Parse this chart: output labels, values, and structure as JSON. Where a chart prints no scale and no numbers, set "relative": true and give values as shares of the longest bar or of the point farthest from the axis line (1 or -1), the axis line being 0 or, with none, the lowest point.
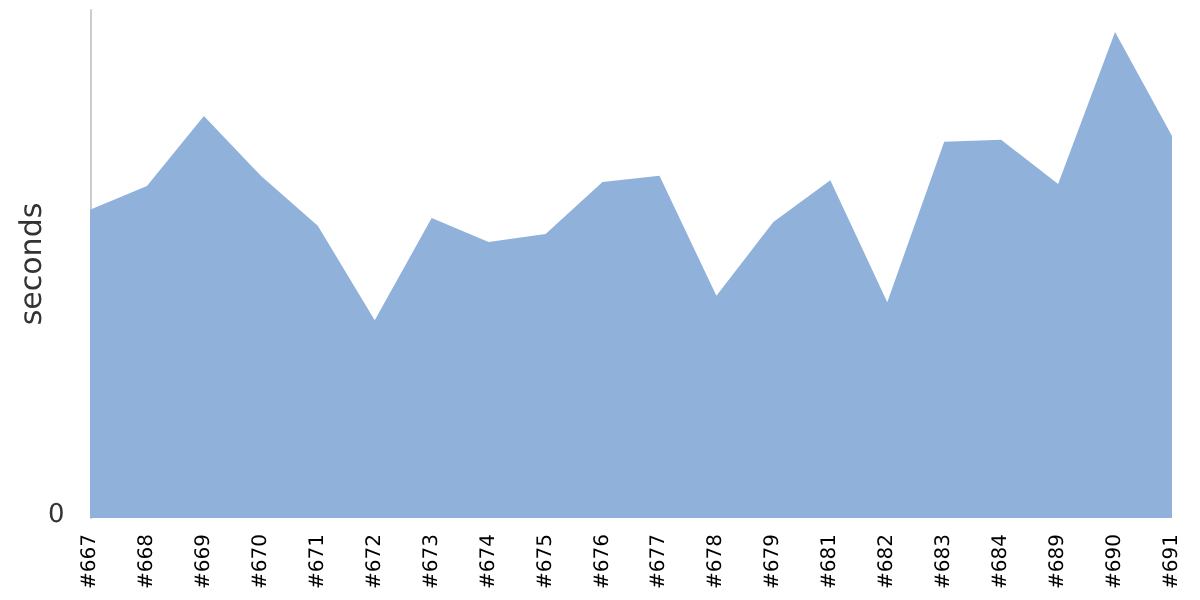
{
  "chart_data": {
    "type": "area",
    "relative": true,
    "ylabel": "seconds",
    "annotations": [
      "0"
    ],
    "color": "#8fb1da",
    "marker": "none",
    "categories": [
      "#667",
      "#668",
      "#669",
      "#670",
      "#671",
      "#672",
      "#673",
      "#674",
      "#675",
      "#676",
      "#677",
      "#678",
      "#679",
      "#681",
      "#682",
      "#683",
      "#684",
      "#689",
      "#690",
      "#691"
    ],
    "values": [
      0.634,
      0.683,
      0.827,
      0.704,
      0.601,
      0.407,
      0.617,
      0.568,
      0.584,
      0.691,
      0.704,
      0.457,
      0.609,
      0.695,
      0.444,
      0.774,
      0.778,
      0.687,
      1,
      0.786
    ]
  }
}
